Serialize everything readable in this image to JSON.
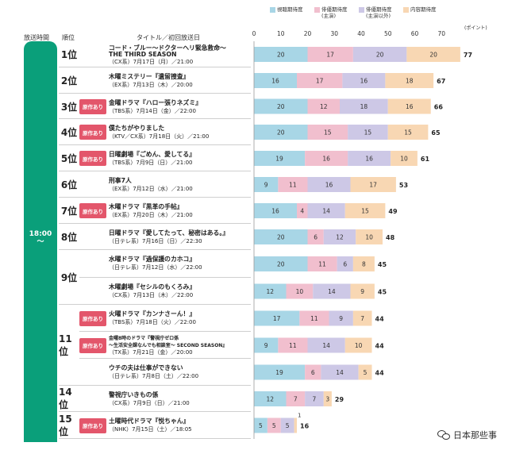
{
  "header": {
    "slot": "放送時間",
    "rank": "順位",
    "title": "タイトル／初回放送日"
  },
  "legend": [
    {
      "label": "視聴期待度",
      "color": "#a8d6e6"
    },
    {
      "label": "俳優期待度\n(主演)",
      "color": "#f1bfce"
    },
    {
      "label": "俳優期待度\n(主演以外)",
      "color": "#cdc8e6"
    },
    {
      "label": "内容期待度",
      "color": "#f8d7b3"
    }
  ],
  "unit": "(ポイント)",
  "time_slot": "18:00\n〜",
  "ranks": [
    "1位",
    "2位",
    "3位",
    "4位",
    "5位",
    "6位",
    "7位",
    "8位",
    "9位",
    "11位",
    "14位",
    "15位"
  ],
  "badge_label": "原作あり",
  "watermark": "日本那些事",
  "chart_data": {
    "type": "bar",
    "orientation": "horizontal",
    "stacked": true,
    "xlim": [
      0,
      80
    ],
    "ticks": [
      0,
      10,
      20,
      30,
      40,
      50,
      60,
      70
    ],
    "series_names": [
      "視聴期待度",
      "俳優期待度(主演)",
      "俳優期待度(主演以外)",
      "内容期待度"
    ],
    "rows": [
      {
        "rank": "1位",
        "badge": false,
        "title": "コード・ブルー〜ドクターヘリ緊急救命〜",
        "title2": "THE THIRD SEASON",
        "date": "（CX系）7月17日（月）／21:00",
        "values": [
          20,
          17,
          20,
          20
        ],
        "total": 77
      },
      {
        "rank": "2位",
        "badge": false,
        "title": "木曜ミステリー『遺留捜査』",
        "date": "（EX系）7月13日（木）／20:00",
        "values": [
          16,
          17,
          16,
          18
        ],
        "total": 67
      },
      {
        "rank": "3位",
        "badge": true,
        "title": "金曜ドラマ『ハロー張りネズミ』",
        "date": "（TBS系）7月14日（金）／22:00",
        "values": [
          20,
          12,
          18,
          16
        ],
        "total": 66
      },
      {
        "rank": "4位",
        "badge": true,
        "title": "僕たちがやりました",
        "date": "（KTV／CX系）7月18日（火）／21:00",
        "values": [
          20,
          15,
          15,
          15
        ],
        "total": 65
      },
      {
        "rank": "5位",
        "badge": true,
        "title": "日曜劇場『ごめん、愛してる』",
        "date": "（TBS系）7月9日（日）／21:00",
        "values": [
          19,
          16,
          16,
          10
        ],
        "total": 61
      },
      {
        "rank": "6位",
        "badge": false,
        "title": "刑事7人",
        "date": "（EX系）7月12日（水）／21:00",
        "values": [
          9,
          11,
          16,
          17
        ],
        "total": 53
      },
      {
        "rank": "7位",
        "badge": true,
        "title": "木曜ドラマ『黒革の手帖』",
        "date": "（EX系）7月20日（木）／21:00",
        "values": [
          16,
          4,
          14,
          15
        ],
        "total": 49
      },
      {
        "rank": "8位",
        "badge": false,
        "title": "日曜ドラマ『愛してたって、秘密はある。』",
        "date": "（日テレ系）7月16日（日）／22:30",
        "values": [
          20,
          6,
          12,
          10
        ],
        "total": 48
      },
      {
        "rank": "9位",
        "badge": false,
        "title": "水曜ドラマ『過保護のカホコ』",
        "date": "（日テレ系）7月12日（水）／22:00",
        "values": [
          20,
          11,
          6,
          8
        ],
        "total": 45
      },
      {
        "rank": "9位",
        "badge": false,
        "title": "木曜劇場『セシルのもくろみ』",
        "date": "（CX系）7月13日（木）／22:00",
        "values": [
          12,
          10,
          14,
          9
        ],
        "total": 45
      },
      {
        "rank": "11位",
        "badge": true,
        "title": "火曜ドラマ『カンナさーん！』",
        "date": "（TBS系）7月18日（火）／22:00",
        "values": [
          17,
          11,
          9,
          7
        ],
        "total": 44
      },
      {
        "rank": "11位",
        "badge": true,
        "title": "金曜8時のドラマ『警視庁ゼロ係",
        "title2": "〜生活安全課なんでも相談室〜 SECOND SEASON』",
        "date": "（TX系）7月21日（金）／20:00",
        "values": [
          9,
          11,
          14,
          10
        ],
        "total": 44
      },
      {
        "rank": "11位",
        "badge": false,
        "title": "ウチの夫は仕事ができない",
        "date": "（日テレ系）7月8日（土）／22:00",
        "values": [
          19,
          6,
          14,
          5
        ],
        "total": 44
      },
      {
        "rank": "14位",
        "badge": false,
        "title": "警視庁いきもの係",
        "date": "（CX系）7月9日（日）／21:00",
        "values": [
          12,
          7,
          7,
          3
        ],
        "total": 29
      },
      {
        "rank": "15位",
        "badge": true,
        "title": "土曜時代ドラマ『悦ちゃん』",
        "date": "（NHK）7月15日（土）／18:05",
        "values": [
          5,
          5,
          5,
          1
        ],
        "total": 16
      }
    ]
  }
}
